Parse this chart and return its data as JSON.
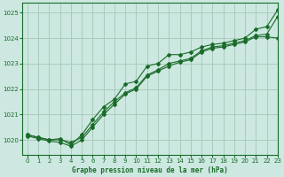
{
  "title": "Graphe pression niveau de la mer (hPa)",
  "bg_color": "#cce8e0",
  "grid_color": "#aaccbb",
  "line_color": "#1a6b2a",
  "xlim": [
    -0.5,
    23
  ],
  "ylim": [
    1019.4,
    1025.4
  ],
  "yticks": [
    1020,
    1021,
    1022,
    1023,
    1024,
    1025
  ],
  "xticks": [
    0,
    1,
    2,
    3,
    4,
    5,
    6,
    7,
    8,
    9,
    10,
    11,
    12,
    13,
    14,
    15,
    16,
    17,
    18,
    19,
    20,
    21,
    22,
    23
  ],
  "series1": {
    "x": [
      0,
      1,
      2,
      3,
      4,
      5,
      6,
      7,
      8,
      9,
      10,
      11,
      12,
      13,
      14,
      15,
      16,
      17,
      18,
      19,
      20,
      21,
      22,
      23
    ],
    "y": [
      1020.2,
      1020.1,
      1020.0,
      1020.05,
      1019.8,
      1020.2,
      1020.8,
      1021.3,
      1021.6,
      1022.2,
      1022.3,
      1022.9,
      1023.0,
      1023.35,
      1023.35,
      1023.45,
      1023.65,
      1023.75,
      1023.8,
      1023.9,
      1024.0,
      1024.35,
      1024.45,
      1025.1
    ]
  },
  "series2": {
    "x": [
      0,
      1,
      2,
      3,
      4,
      5,
      6,
      7,
      8,
      9,
      10,
      11,
      12,
      13,
      14,
      15,
      16,
      17,
      18,
      19,
      20,
      21,
      22,
      23
    ],
    "y": [
      1020.2,
      1020.1,
      1020.0,
      1020.0,
      1019.9,
      1020.1,
      1020.6,
      1021.1,
      1021.5,
      1021.85,
      1022.05,
      1022.55,
      1022.75,
      1023.0,
      1023.1,
      1023.2,
      1023.5,
      1023.65,
      1023.7,
      1023.8,
      1023.9,
      1024.1,
      1024.15,
      1024.85
    ]
  },
  "series3": {
    "x": [
      0,
      1,
      2,
      3,
      4,
      5,
      6,
      7,
      8,
      9,
      10,
      11,
      12,
      13,
      14,
      15,
      16,
      17,
      18,
      19,
      20,
      21,
      22,
      23
    ],
    "y": [
      1020.15,
      1020.05,
      1019.95,
      1019.9,
      1019.75,
      1020.0,
      1020.5,
      1021.0,
      1021.4,
      1021.8,
      1022.0,
      1022.5,
      1022.7,
      1022.9,
      1023.05,
      1023.15,
      1023.45,
      1023.6,
      1023.65,
      1023.75,
      1023.85,
      1024.05,
      1024.05,
      1024.0
    ]
  }
}
